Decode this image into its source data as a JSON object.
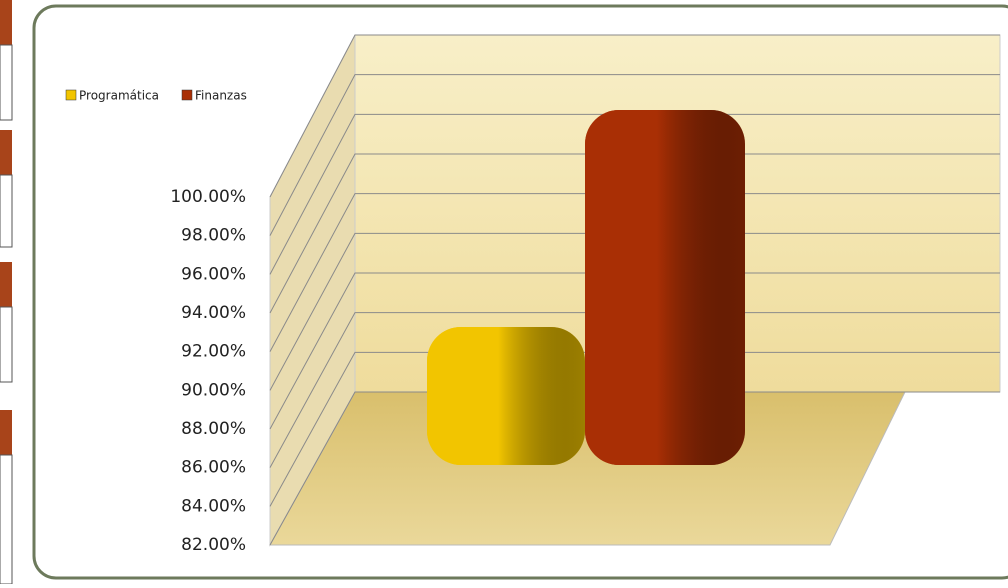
{
  "chart_data": {
    "type": "bar",
    "categories": [
      null
    ],
    "series": [
      {
        "name": "Programática",
        "color": "#f2c500",
        "values": [
          89
        ]
      },
      {
        "name": "Finanzas",
        "color": "#a92f05",
        "values": [
          100
        ]
      }
    ],
    "ylim": [
      82,
      100
    ],
    "yticks": [
      {
        "value": 82,
        "label": "82.00%"
      },
      {
        "value": 84,
        "label": "84.00%"
      },
      {
        "value": 86,
        "label": "86.00%"
      },
      {
        "value": 88,
        "label": "88.00%"
      },
      {
        "value": 90,
        "label": "90.00%"
      },
      {
        "value": 92,
        "label": "92.00%"
      },
      {
        "value": 94,
        "label": "94.00%"
      },
      {
        "value": 96,
        "label": "96.00%"
      },
      {
        "value": 98,
        "label": "98.00%"
      },
      {
        "value": 100,
        "label": "100.00%"
      }
    ],
    "grid": true,
    "legend": "top-left"
  }
}
